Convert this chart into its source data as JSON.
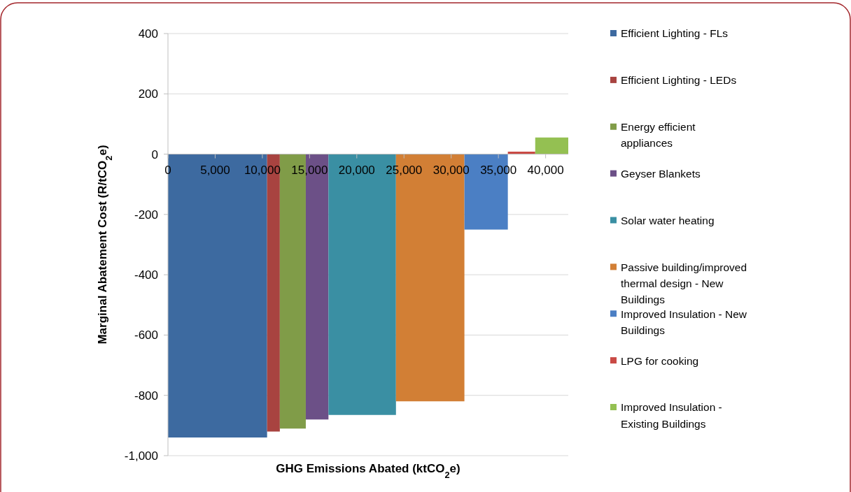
{
  "chart_data": {
    "type": "area",
    "xlabel": "GHG  Emissions Abated (ktCO$_{2}$e)",
    "ylabel": "Marginal Abatement Cost (R/tCO$_{2}$e)",
    "xlim": [
      0,
      42400
    ],
    "ylim": [
      -1000,
      400
    ],
    "xticks": [
      0,
      {
        "value": 5000,
        "label": "5,000"
      },
      {
        "value": 10000,
        "label": "10,000"
      },
      {
        "value": 15000,
        "label": "15,000"
      },
      {
        "value": 20000,
        "label": "20,000"
      },
      {
        "value": 25000,
        "label": "25,000"
      },
      {
        "value": 30000,
        "label": "30,000"
      },
      {
        "value": 35000,
        "label": "35,000"
      },
      {
        "value": 40000,
        "label": "40,000"
      }
    ],
    "yticks": [
      {
        "value": -1000,
        "label": "-1,000"
      },
      -800,
      -600,
      -400,
      -200,
      0,
      200,
      400
    ],
    "grid": "y",
    "legend": "right",
    "series": [
      {
        "name": "Efficient Lighting - FLs",
        "color": "#3d6aa0",
        "x": [
          0,
          10500
        ],
        "values": [
          -940,
          -940
        ]
      },
      {
        "name": "Efficient Lighting - LEDs",
        "color": "#a84340",
        "x": [
          10500,
          11850
        ],
        "values": [
          -920,
          -920
        ]
      },
      {
        "name": "Energy efficient appliances",
        "color": "#809c48",
        "x": [
          11850,
          14600
        ],
        "values": [
          -910,
          -910
        ]
      },
      {
        "name": "Geyser Blankets",
        "color": "#6c5087",
        "x": [
          14600,
          17000
        ],
        "values": [
          -880,
          -880
        ]
      },
      {
        "name": "Solar water heating",
        "color": "#3a8fa3",
        "x": [
          17000,
          24150
        ],
        "values": [
          -865,
          -865
        ]
      },
      {
        "name": "Passive building/improved thermal design - New Buildings",
        "color": "#d27f35",
        "x": [
          24150,
          31400
        ],
        "values": [
          -820,
          -820
        ]
      },
      {
        "name": "Improved Insulation - New Buildings",
        "color": "#4b7fc4",
        "x": [
          31400,
          36000
        ],
        "values": [
          -250,
          -250
        ]
      },
      {
        "name": "LPG for cooking",
        "color": "#c94a45",
        "x": [
          36000,
          38900
        ],
        "values": [
          8,
          8
        ]
      },
      {
        "name": "Improved Insulation - Existing Buildings",
        "color": "#94c052",
        "x": [
          38900,
          42400
        ],
        "values": [
          55,
          55
        ]
      }
    ]
  }
}
